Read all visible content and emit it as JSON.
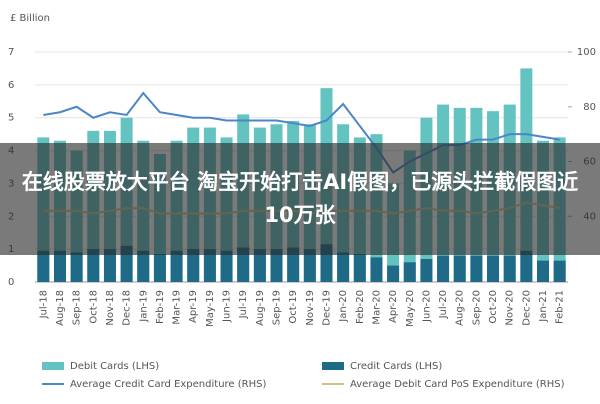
{
  "chart_data": {
    "type": "bar",
    "y_label": "£ Billion",
    "categories": [
      "Jul-18",
      "Aug-18",
      "Sep-18",
      "Oct-18",
      "Nov-18",
      "Dec-18",
      "Jan-19",
      "Feb-19",
      "Mar-19",
      "Apr-19",
      "May-19",
      "Jun-19",
      "Jul-19",
      "Aug-19",
      "Sep-19",
      "Oct-19",
      "Nov-19",
      "Dec-19",
      "Jan-20",
      "Feb-20",
      "Mar-20",
      "Apr-20",
      "May-20",
      "Jun-20",
      "Jul-20",
      "Aug-20",
      "Sep-20",
      "Oct-20",
      "Nov-20",
      "Dec-20",
      "Jan-21",
      "Feb-21"
    ],
    "ylim": [
      0,
      7
    ],
    "yticks": [
      0,
      1,
      2,
      3,
      4,
      5,
      6,
      7
    ],
    "y2lim": [
      16,
      100
    ],
    "y2ticks": [
      40,
      60,
      80,
      100
    ],
    "series": [
      {
        "name": "Debit Cards (LHS)",
        "type": "bar",
        "color": "#62c3c0",
        "values": [
          4.4,
          4.3,
          4.0,
          4.6,
          4.6,
          5.0,
          4.3,
          3.9,
          4.3,
          4.7,
          4.7,
          4.4,
          5.1,
          4.7,
          4.8,
          4.9,
          4.8,
          5.9,
          4.8,
          4.4,
          4.5,
          3.0,
          4.0,
          5.0,
          5.4,
          5.3,
          5.3,
          5.2,
          5.4,
          6.5,
          4.3,
          4.4
        ]
      },
      {
        "name": "Credit Cards (LHS)",
        "type": "bar",
        "color": "#1e6a87",
        "values": [
          0.95,
          0.95,
          0.9,
          1.0,
          1.0,
          1.1,
          0.95,
          0.85,
          0.95,
          1.0,
          1.0,
          0.95,
          1.05,
          1.0,
          1.0,
          1.05,
          1.0,
          1.15,
          0.9,
          0.85,
          0.75,
          0.5,
          0.6,
          0.7,
          0.8,
          0.8,
          0.8,
          0.8,
          0.8,
          0.95,
          0.65,
          0.65
        ]
      },
      {
        "name": "Average Credit Card Expenditure (RHS)",
        "type": "line",
        "axis": "y2",
        "color": "#4a86c8",
        "values": [
          77,
          78,
          80,
          76,
          78,
          77,
          85,
          78,
          77,
          76,
          76,
          75,
          75,
          75,
          75,
          74,
          73,
          75,
          81,
          73,
          65,
          56,
          60,
          63,
          66,
          66,
          68,
          68,
          70,
          70,
          69,
          68
        ]
      },
      {
        "name": "Average Debit Card PoS Expenditure (RHS)",
        "type": "line",
        "axis": "y2",
        "color": "#cbc38e",
        "values": [
          42,
          42,
          42,
          41,
          42,
          43,
          43,
          41,
          41,
          41,
          41,
          41,
          42,
          42,
          42,
          42,
          41,
          42,
          42,
          42,
          42,
          41,
          42,
          43,
          42,
          42,
          41,
          42,
          43,
          45,
          44,
          43
        ]
      }
    ]
  },
  "headline": "在线股票放大平台 淘宝开始打击AI假图，已源头拦截假图近10万张"
}
